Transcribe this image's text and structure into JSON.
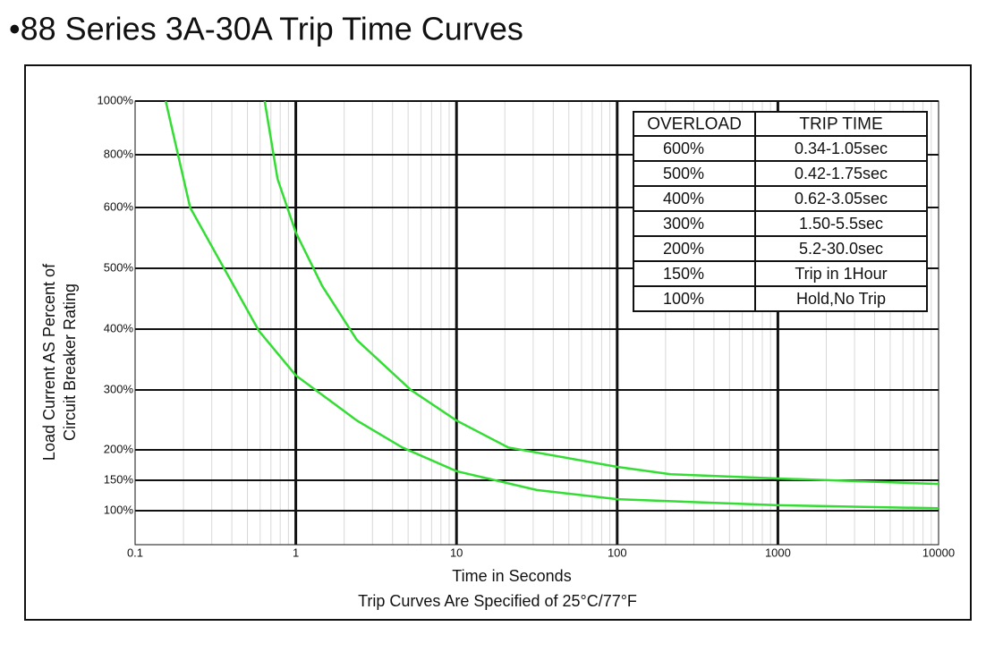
{
  "chart_data": {
    "type": "line",
    "title": "•88 Series 3A-30A Trip Time Curves",
    "xlabel": "Time in Seconds",
    "note": "Trip Curves Are Specified of 25°C/77°F",
    "ylabel": [
      "Load Current AS Percent of",
      "Circuit Breaker Rating"
    ],
    "xscale": "log",
    "xlim": [
      0.1,
      10000
    ],
    "xticks": [
      0.1,
      1,
      10,
      100,
      1000,
      10000
    ],
    "ylim": [
      45,
      1000
    ],
    "yticks": [
      {
        "value": 1000,
        "label": "1000%"
      },
      {
        "value": 800,
        "label": "800%"
      },
      {
        "value": 600,
        "label": "600%"
      },
      {
        "value": 500,
        "label": "500%"
      },
      {
        "value": 400,
        "label": "400%"
      },
      {
        "value": 300,
        "label": "300%"
      },
      {
        "value": 200,
        "label": "200%"
      },
      {
        "value": 150,
        "label": "150%"
      },
      {
        "value": 100,
        "label": "100%"
      }
    ],
    "grid": true,
    "series": [
      {
        "color": "#33dd33",
        "x": [
          0.155,
          0.22,
          0.59,
          1,
          2.4,
          4.6,
          10,
          31.6,
          100,
          1000,
          10000
        ],
        "values": [
          1000,
          600,
          397,
          324,
          249,
          204,
          165,
          134,
          119,
          109,
          104
        ]
      },
      {
        "color": "#33dd33",
        "x": [
          0.64,
          0.77,
          1,
          1.46,
          2.4,
          5.2,
          10,
          21,
          100,
          215,
          1000,
          10000
        ],
        "values": [
          1000,
          708,
          559,
          471,
          382,
          300,
          249,
          204,
          172,
          160,
          153,
          144
        ]
      }
    ],
    "table": {
      "columns": [
        "OVERLOAD",
        "TRIP TIME"
      ],
      "rows": [
        [
          "600%",
          "0.34-1.05sec"
        ],
        [
          "500%",
          "0.42-1.75sec"
        ],
        [
          "400%",
          "0.62-3.05sec"
        ],
        [
          "300%",
          "1.50-5.5sec"
        ],
        [
          "200%",
          "5.2-30.0sec"
        ],
        [
          "150%",
          "Trip in 1Hour"
        ],
        [
          "100%",
          "Hold,No Trip"
        ]
      ]
    }
  }
}
